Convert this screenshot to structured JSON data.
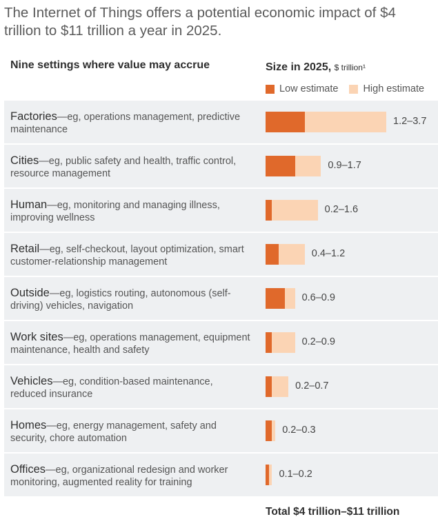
{
  "title": "The Internet of Things offers a potential economic impact of $4 trillion to $11 trillion a year in 2025.",
  "left_header": "Nine settings where value may accrue",
  "right_header": "Size in 2025,",
  "right_header_unit": "$ trillion¹",
  "legend": {
    "low": "Low estimate",
    "high": "High estimate"
  },
  "total": "Total  $4 trillion–$11 trillion",
  "colors": {
    "low": "#e0692b",
    "high": "#fbd4b4",
    "row_bg": "#eef0f2"
  },
  "chart_data": {
    "type": "bar",
    "categories": [
      "Factories",
      "Cities",
      "Human",
      "Retail",
      "Outside",
      "Work sites",
      "Vehicles",
      "Homes",
      "Offices"
    ],
    "descriptions": [
      "—eg, operations management, predictive maintenance",
      "—eg, public safety and health, traffic control, resource management",
      "—eg, monitoring and managing illness, improving wellness",
      "—eg, self-checkout, layout optimization, smart customer-relationship management",
      "—eg, logistics routing, autonomous (self-driving) vehicles, navigation",
      "—eg, operations management, equipment maintenance, health and safety",
      "—eg, condition-based maintenance, reduced insurance",
      "—eg, energy management, safety and security, chore automation",
      "—eg, organizational redesign and worker monitoring, augmented reality for training"
    ],
    "series": [
      {
        "name": "Low estimate",
        "values": [
          1.2,
          0.9,
          0.2,
          0.4,
          0.6,
          0.2,
          0.2,
          0.2,
          0.1
        ]
      },
      {
        "name": "High estimate",
        "values": [
          3.7,
          1.7,
          1.6,
          1.2,
          0.9,
          0.9,
          0.7,
          0.3,
          0.2
        ]
      }
    ],
    "labels": [
      "1.2–3.7",
      "0.9–1.7",
      "0.2–1.6",
      "0.4–1.2",
      "0.6–0.9",
      "0.2–0.9",
      "0.2–0.7",
      "0.2–0.3",
      "0.1–0.2"
    ],
    "xlabel": "",
    "ylabel": "",
    "grid": false,
    "legend_position": "top-right"
  }
}
